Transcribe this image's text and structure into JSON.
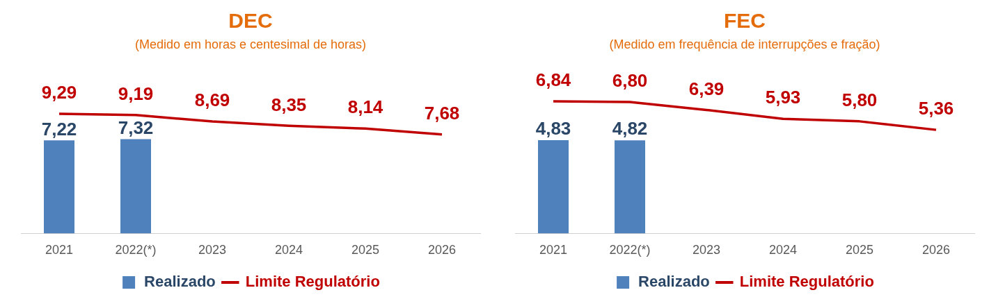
{
  "chart_data": [
    {
      "type": "bar",
      "title": "DEC",
      "subtitle": "(Medido em horas e centesimal de horas)",
      "categories": [
        "2021",
        "2022(*)",
        "2023",
        "2024",
        "2025",
        "2026"
      ],
      "tick_labels": "x",
      "grid": false,
      "legend": "bottom",
      "marker": "none",
      "line_style": "solid",
      "series": [
        {
          "name": "Realizado",
          "color": "#4f81bd",
          "values": [
            7.22,
            7.32,
            null,
            null,
            null,
            null
          ],
          "value_labels": [
            "7,22",
            "7,32",
            null,
            null,
            null,
            null
          ]
        },
        {
          "name": "Limite Regulatório",
          "type": "line",
          "color": "#c00000",
          "values": [
            9.29,
            9.19,
            8.69,
            8.35,
            8.14,
            7.68
          ],
          "value_labels": [
            "9,29",
            "9,19",
            "8,69",
            "8,35",
            "8,14",
            "7,68"
          ]
        }
      ]
    },
    {
      "type": "bar",
      "title": "FEC",
      "subtitle": "(Medido em frequência de interrupções e fração)",
      "categories": [
        "2021",
        "2022(*)",
        "2023",
        "2024",
        "2025",
        "2026"
      ],
      "tick_labels": "x",
      "grid": false,
      "legend": "bottom",
      "marker": "none",
      "line_style": "solid",
      "series": [
        {
          "name": "Realizado",
          "color": "#4f81bd",
          "values": [
            4.83,
            4.82,
            null,
            null,
            null,
            null
          ],
          "value_labels": [
            "4,83",
            "4,82",
            null,
            null,
            null,
            null
          ]
        },
        {
          "name": "Limite Regulatório",
          "type": "line",
          "color": "#c00000",
          "values": [
            6.84,
            6.8,
            6.39,
            5.93,
            5.8,
            5.36
          ],
          "value_labels": [
            "6,84",
            "6,80",
            "6,39",
            "5,93",
            "5,80",
            "5,36"
          ]
        }
      ]
    }
  ]
}
